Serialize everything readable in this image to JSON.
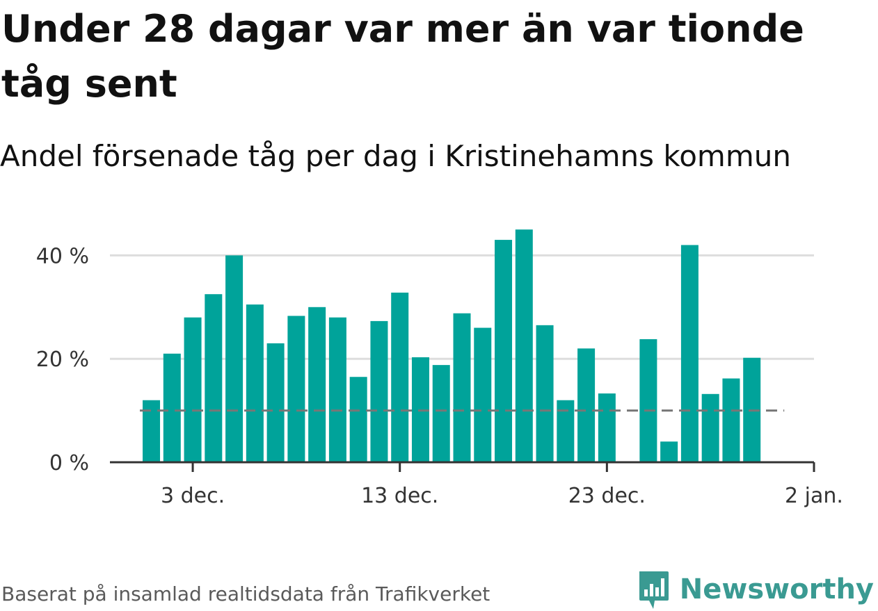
{
  "header": {
    "title": "Under 28 dagar var mer än var tionde tåg sent",
    "subtitle": "Andel försenade tåg per dag i Kristinehamns kommun"
  },
  "footer": {
    "source": "Baserat på insamlad realtidsdata från Trafikverket",
    "brand": "Newsworthy"
  },
  "colors": {
    "bar": "#00a39a",
    "reference_line": "#777777",
    "grid": "#dddddd",
    "axis": "#333333",
    "brand": "#3a9a92"
  },
  "chart_data": {
    "type": "bar",
    "title": "Under 28 dagar var mer än var tionde tåg sent",
    "subtitle": "Andel försenade tåg per dag i Kristinehamns kommun",
    "xlabel": "",
    "ylabel": "",
    "ylim": [
      0,
      50
    ],
    "unit": "%",
    "grid": true,
    "x_ticks": [
      {
        "date": "2023-12-03",
        "label": "3 dec."
      },
      {
        "date": "2023-12-13",
        "label": "13 dec."
      },
      {
        "date": "2023-12-23",
        "label": "23 dec."
      },
      {
        "date": "2024-01-02",
        "label": "2 jan."
      }
    ],
    "y_ticks": [
      {
        "value": 0,
        "label": "0 %"
      },
      {
        "value": 20,
        "label": "20 %"
      },
      {
        "value": 40,
        "label": "40 %"
      }
    ],
    "reference_line": {
      "value": 10,
      "style": "dashed"
    },
    "x_range": [
      "2023-11-29",
      "2024-01-02"
    ],
    "bars": [
      {
        "date": "2023-12-01",
        "value": 12
      },
      {
        "date": "2023-12-02",
        "value": 21
      },
      {
        "date": "2023-12-03",
        "value": 28
      },
      {
        "date": "2023-12-04",
        "value": 32.5
      },
      {
        "date": "2023-12-05",
        "value": 40
      },
      {
        "date": "2023-12-06",
        "value": 30.5
      },
      {
        "date": "2023-12-07",
        "value": 23
      },
      {
        "date": "2023-12-08",
        "value": 28.3
      },
      {
        "date": "2023-12-09",
        "value": 30
      },
      {
        "date": "2023-12-10",
        "value": 28
      },
      {
        "date": "2023-12-11",
        "value": 16.5
      },
      {
        "date": "2023-12-12",
        "value": 27.3
      },
      {
        "date": "2023-12-13",
        "value": 32.8
      },
      {
        "date": "2023-12-14",
        "value": 20.3
      },
      {
        "date": "2023-12-15",
        "value": 18.8
      },
      {
        "date": "2023-12-16",
        "value": 28.8
      },
      {
        "date": "2023-12-17",
        "value": 26
      },
      {
        "date": "2023-12-18",
        "value": 43
      },
      {
        "date": "2023-12-19",
        "value": 45
      },
      {
        "date": "2023-12-20",
        "value": 26.5
      },
      {
        "date": "2023-12-21",
        "value": 12
      },
      {
        "date": "2023-12-22",
        "value": 22
      },
      {
        "date": "2023-12-23",
        "value": 13.3
      },
      {
        "date": "2023-12-25",
        "value": 23.8
      },
      {
        "date": "2023-12-26",
        "value": 4
      },
      {
        "date": "2023-12-27",
        "value": 42
      },
      {
        "date": "2023-12-28",
        "value": 13.2
      },
      {
        "date": "2023-12-29",
        "value": 16.2
      },
      {
        "date": "2023-12-30",
        "value": 20.2
      }
    ]
  }
}
